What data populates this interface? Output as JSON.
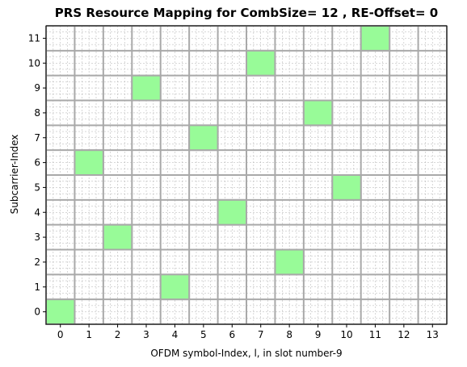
{
  "chart_data": {
    "type": "heatmap",
    "title": "PRS Resource Mapping for CombSize= 12 , RE-Offset= 0",
    "xlabel": "OFDM symbol-Index, l, in slot number-9",
    "ylabel": "Subcarrier-Index",
    "x_ticks": [
      "0",
      "1",
      "2",
      "3",
      "4",
      "5",
      "6",
      "7",
      "8",
      "9",
      "10",
      "11",
      "12",
      "13"
    ],
    "y_ticks": [
      "0",
      "1",
      "2",
      "3",
      "4",
      "5",
      "6",
      "7",
      "8",
      "9",
      "10",
      "11"
    ],
    "xlim": [
      -0.5,
      13.5
    ],
    "ylim": [
      -0.5,
      11.5
    ],
    "grid": true,
    "minor_grid": true,
    "cells": [
      {
        "symbol": 0,
        "subcarrier": 0
      },
      {
        "symbol": 1,
        "subcarrier": 6
      },
      {
        "symbol": 2,
        "subcarrier": 3
      },
      {
        "symbol": 3,
        "subcarrier": 9
      },
      {
        "symbol": 4,
        "subcarrier": 1
      },
      {
        "symbol": 5,
        "subcarrier": 7
      },
      {
        "symbol": 6,
        "subcarrier": 4
      },
      {
        "symbol": 7,
        "subcarrier": 10
      },
      {
        "symbol": 8,
        "subcarrier": 2
      },
      {
        "symbol": 9,
        "subcarrier": 8
      },
      {
        "symbol": 10,
        "subcarrier": 5
      },
      {
        "symbol": 11,
        "subcarrier": 11
      }
    ],
    "colors": {
      "cell_fill": "#98fb98",
      "cell_edge": "#a9a9a9",
      "major_grid": "#a9a9a9",
      "minor_grid": "#b0b0b0"
    }
  }
}
